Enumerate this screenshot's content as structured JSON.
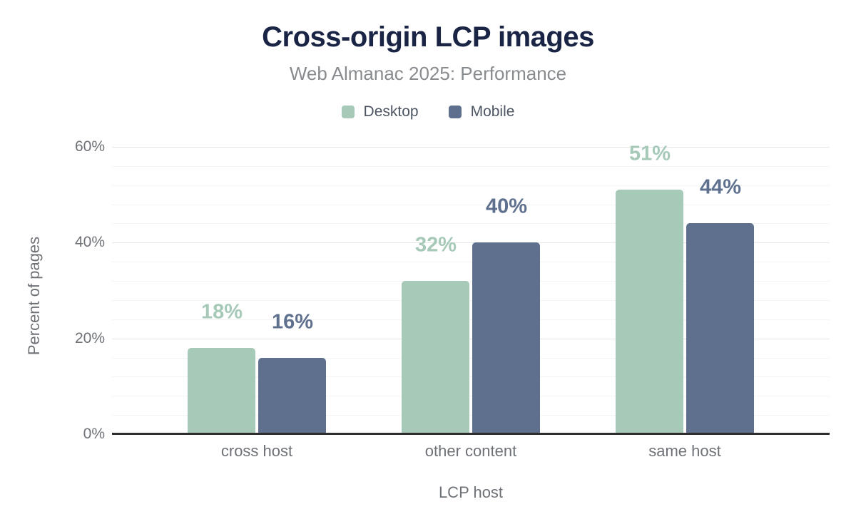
{
  "chart_data": {
    "type": "bar",
    "title": "Cross-origin LCP images",
    "subtitle": "Web Almanac 2025: Performance",
    "categories": [
      "cross host",
      "other content",
      "same host"
    ],
    "series": [
      {
        "name": "Desktop",
        "color": "#a6c9b8",
        "values": [
          18,
          32,
          51
        ],
        "value_labels": [
          "18%",
          "32%",
          "51%"
        ]
      },
      {
        "name": "Mobile",
        "color": "#5e708d",
        "values": [
          16,
          40,
          44
        ],
        "value_labels": [
          "16%",
          "40%",
          "44%"
        ]
      }
    ],
    "xlabel": "LCP host",
    "ylabel": "Percent of pages",
    "ylim": [
      0,
      60
    ],
    "yticks": [
      0,
      20,
      40,
      60
    ],
    "ytick_labels": [
      "0%",
      "20%",
      "40%",
      "60%"
    ],
    "minor_gridline_step": 4,
    "grid": true,
    "legend_position": "top",
    "value_labels_shown": true,
    "colors": {
      "title": "#1a2545",
      "subtitle": "#898c8f",
      "axis_text": "#6e7277",
      "legend_text": "#4d5563",
      "axis_line": "#2d2d2d",
      "major_gridline": "#e6e6e6",
      "minor_gridline": "#f4f4f4",
      "background": "#ffffff"
    }
  }
}
